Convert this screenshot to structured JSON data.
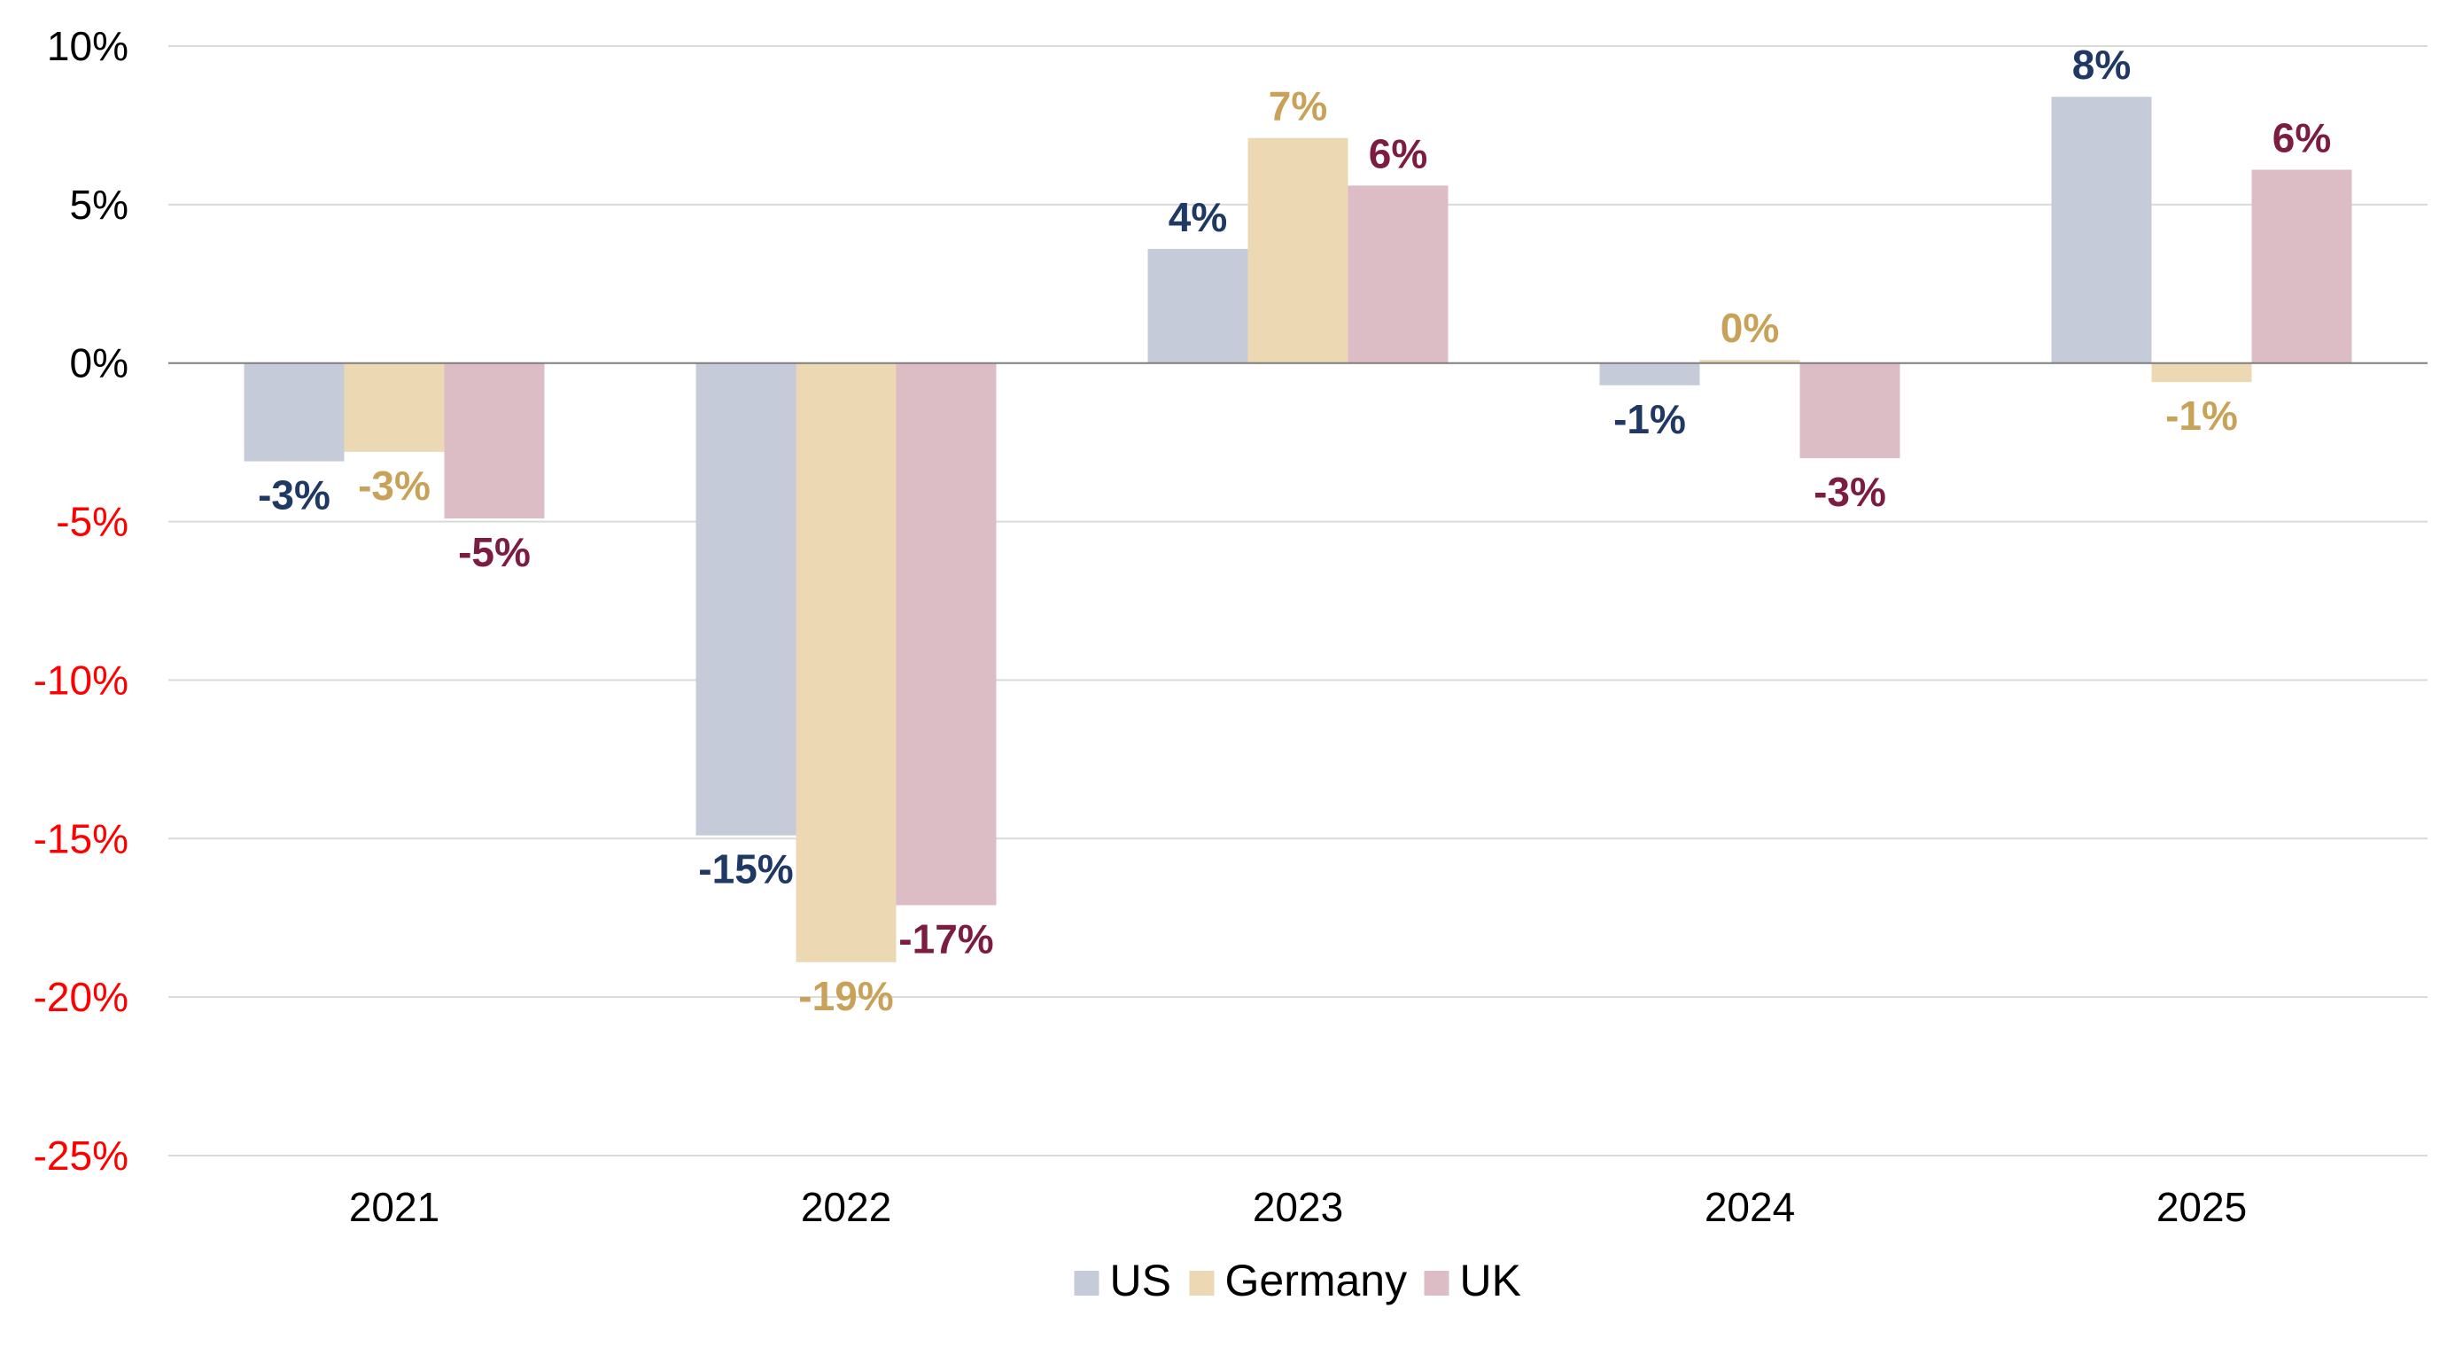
{
  "chart_data": {
    "type": "bar",
    "title": "",
    "xlabel": "",
    "ylabel": "",
    "categories": [
      "2021",
      "2022",
      "2023",
      "2024",
      "2025"
    ],
    "series": [
      {
        "name": "US",
        "values": [
          -3.1,
          -14.9,
          3.6,
          -0.7,
          8.4
        ],
        "labels": [
          "-3%",
          "-15%",
          "4%",
          "-1%",
          "8%"
        ],
        "color": "#c5cbd9",
        "label_color": "#1f3864"
      },
      {
        "name": "Germany",
        "values": [
          -2.8,
          -18.9,
          7.1,
          0.1,
          -0.6
        ],
        "labels": [
          "-3%",
          "-19%",
          "7%",
          "0%",
          "-1%"
        ],
        "color": "#ecd9b4",
        "label_color": "#c9a25a"
      },
      {
        "name": "UK",
        "values": [
          -4.9,
          -17.1,
          5.6,
          -3.0,
          6.1
        ],
        "labels": [
          "-5%",
          "-17%",
          "6%",
          "-3%",
          "6%"
        ],
        "color": "#dcbcc5",
        "label_color": "#7b1c40"
      }
    ],
    "ylim": [
      -25,
      10
    ],
    "yticks": [
      10,
      5,
      0,
      -5,
      -10,
      -15,
      -20,
      -25
    ],
    "ytick_labels": [
      "10%",
      "5%",
      "0%",
      "-5%",
      "-10%",
      "-15%",
      "-20%",
      "-25%"
    ],
    "ytick_color_positive": "#000000",
    "ytick_color_negative": "#ff0000",
    "grid": true,
    "legend_position": "bottom-center"
  }
}
